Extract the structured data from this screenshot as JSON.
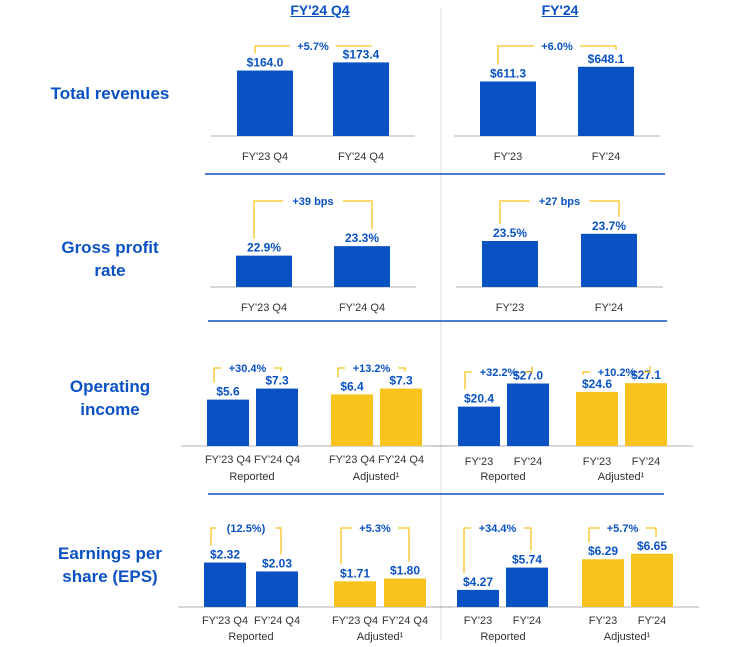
{
  "headers": {
    "quarter": "FY'24 Q4",
    "year": "FY'24"
  },
  "rows": {
    "revenues": {
      "label_line1": "Total revenues",
      "label_line2": ""
    },
    "gross": {
      "label_line1": "Gross profit",
      "label_line2": "rate"
    },
    "operating": {
      "label_line1": "Operating",
      "label_line2": "income"
    },
    "eps": {
      "label_line1": "Earnings per",
      "label_line2": "share (EPS)"
    }
  },
  "colors": {
    "blue": "#0a52c4",
    "yellow": "#f7c31c",
    "bracket": "#f7c31c",
    "separator": "#0a52c4",
    "grid": "#dcdcdc",
    "axis": "#999999",
    "label": "#333333"
  },
  "chart_data": [
    {
      "id": "rev_q4",
      "type": "bar",
      "title": "Total revenues",
      "categories": [
        "FY'23 Q4",
        "FY'24 Q4"
      ],
      "values": [
        164.0,
        173.4
      ],
      "value_labels": [
        "$164.0",
        "$173.4"
      ],
      "colors": [
        "blue",
        "blue"
      ],
      "change_labels": [
        "+5.7%"
      ]
    },
    {
      "id": "rev_fy",
      "type": "bar",
      "title": "Total revenues",
      "categories": [
        "FY'23",
        "FY'24"
      ],
      "values": [
        611.3,
        648.1
      ],
      "value_labels": [
        "$611.3",
        "$648.1"
      ],
      "colors": [
        "blue",
        "blue"
      ],
      "change_labels": [
        "+6.0%"
      ]
    },
    {
      "id": "gp_q4",
      "type": "bar",
      "title": "Gross profit rate",
      "categories": [
        "FY'23 Q4",
        "FY'24 Q4"
      ],
      "values": [
        22.9,
        23.3
      ],
      "value_labels": [
        "22.9%",
        "23.3%"
      ],
      "colors": [
        "blue",
        "blue"
      ],
      "change_labels": [
        "+39 bps"
      ]
    },
    {
      "id": "gp_fy",
      "type": "bar",
      "title": "Gross profit rate",
      "categories": [
        "FY'23",
        "FY'24"
      ],
      "values": [
        23.5,
        23.7
      ],
      "value_labels": [
        "23.5%",
        "23.7%"
      ],
      "colors": [
        "blue",
        "blue"
      ],
      "change_labels": [
        "+27 bps"
      ]
    },
    {
      "id": "oi_q4",
      "type": "bar",
      "title": "Operating income",
      "categories": [
        "FY'23 Q4",
        "FY'24 Q4",
        "FY'23 Q4",
        "FY'24 Q4"
      ],
      "values": [
        5.6,
        7.3,
        6.4,
        7.3
      ],
      "value_labels": [
        "$5.6",
        "$7.3",
        "$6.4",
        "$7.3"
      ],
      "colors": [
        "blue",
        "blue",
        "yellow",
        "yellow"
      ],
      "groups": [
        "Reported",
        "Adjusted¹"
      ],
      "change_labels": [
        "+30.4%",
        "+13.2%"
      ]
    },
    {
      "id": "oi_fy",
      "type": "bar",
      "title": "Operating income",
      "categories": [
        "FY'23",
        "FY'24",
        "FY'23",
        "FY'24"
      ],
      "values": [
        20.4,
        27.0,
        24.6,
        27.1
      ],
      "value_labels": [
        "$20.4",
        "$27.0",
        "$24.6",
        "$27.1"
      ],
      "colors": [
        "blue",
        "blue",
        "yellow",
        "yellow"
      ],
      "groups": [
        "Reported",
        "Adjusted¹"
      ],
      "change_labels": [
        "+32.2%",
        "+10.2%"
      ]
    },
    {
      "id": "eps_q4",
      "type": "bar",
      "title": "Earnings per share (EPS)",
      "categories": [
        "FY'23 Q4",
        "FY'24 Q4",
        "FY'23 Q4",
        "FY'24 Q4"
      ],
      "values": [
        2.32,
        2.03,
        1.71,
        1.8
      ],
      "value_labels": [
        "$2.32",
        "$2.03",
        "$1.71",
        "$1.80"
      ],
      "colors": [
        "blue",
        "blue",
        "yellow",
        "yellow"
      ],
      "groups": [
        "Reported",
        "Adjusted¹"
      ],
      "change_labels": [
        "(12.5%)",
        "+5.3%"
      ]
    },
    {
      "id": "eps_fy",
      "type": "bar",
      "title": "Earnings per share (EPS)",
      "categories": [
        "FY'23",
        "FY'24",
        "FY'23",
        "FY'24"
      ],
      "values": [
        4.27,
        5.74,
        6.29,
        6.65
      ],
      "value_labels": [
        "$4.27",
        "$5.74",
        "$6.29",
        "$6.65"
      ],
      "colors": [
        "blue",
        "blue",
        "yellow",
        "yellow"
      ],
      "groups": [
        "Reported",
        "Adjusted¹"
      ],
      "change_labels": [
        "+34.4%",
        "+5.7%"
      ]
    }
  ]
}
